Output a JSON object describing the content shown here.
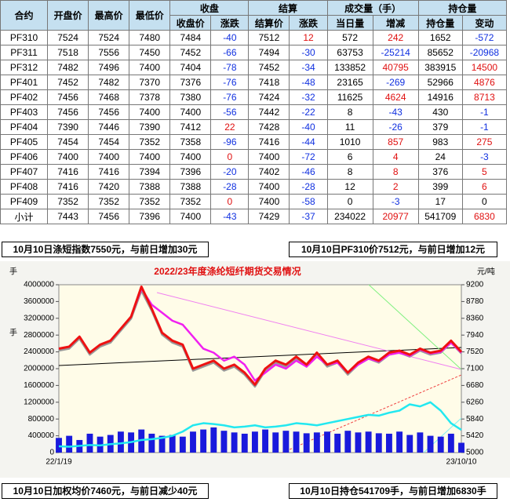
{
  "table": {
    "header": [
      "合约",
      "开盘价",
      "最高价",
      "最低价"
    ],
    "groups": [
      "收盘",
      "结算",
      "成交量（手）",
      "持仓量"
    ],
    "subheaders": [
      "收盘价",
      "涨跌",
      "结算价",
      "涨跌",
      "当日量",
      "增减",
      "持仓量",
      "变动"
    ],
    "rows": [
      [
        "PF310",
        7524,
        7524,
        7480,
        7484,
        -40,
        7512,
        12,
        572,
        242,
        1652,
        -572
      ],
      [
        "PF311",
        7518,
        7556,
        7450,
        7452,
        -66,
        7494,
        -30,
        63753,
        -25214,
        85652,
        -20968
      ],
      [
        "PF312",
        7482,
        7496,
        7400,
        7404,
        -78,
        7452,
        -34,
        133852,
        40795,
        383915,
        14500
      ],
      [
        "PF401",
        7452,
        7482,
        7370,
        7376,
        -76,
        7418,
        -48,
        23165,
        -269,
        52966,
        4876
      ],
      [
        "PF402",
        7456,
        7468,
        7378,
        7380,
        -76,
        7424,
        -32,
        11625,
        4624,
        14916,
        8713
      ],
      [
        "PF403",
        7456,
        7456,
        7400,
        7400,
        -56,
        7442,
        -22,
        8,
        -43,
        430,
        -1
      ],
      [
        "PF404",
        7390,
        7446,
        7390,
        7412,
        22,
        7428,
        -40,
        11,
        -26,
        379,
        -1
      ],
      [
        "PF405",
        7454,
        7454,
        7352,
        7358,
        -96,
        7416,
        -44,
        1010,
        857,
        983,
        275
      ],
      [
        "PF406",
        7400,
        7400,
        7400,
        7400,
        0,
        7400,
        -72,
        6,
        4,
        24,
        -3
      ],
      [
        "PF407",
        7416,
        7416,
        7394,
        7396,
        -20,
        7402,
        -46,
        8,
        8,
        376,
        5
      ],
      [
        "PF408",
        7416,
        7420,
        7388,
        7388,
        -28,
        7400,
        -28,
        12,
        2,
        399,
        6
      ],
      [
        "PF409",
        7352,
        7352,
        7352,
        7352,
        0,
        7400,
        -58,
        0,
        -3,
        17,
        0
      ],
      [
        "小计",
        7443,
        7456,
        7396,
        7400,
        -43,
        7429,
        -37,
        234022,
        20977,
        541709,
        6830
      ]
    ]
  },
  "banners": [
    "10月10日涤短指数7550元，与前日增加30元",
    "10月10日PF310价7512元，与前日增加12元",
    "10月10日加权均价7460元，与前日减少40元",
    "10月10日持仓541709手，与前日增加6830手"
  ],
  "chart_data": {
    "type": "line",
    "title": "2022/23年度涤纶短纤期货交易情况",
    "y_label": "手",
    "y2_label": "元/吨",
    "categories": [
      "22/1/19",
      null,
      null,
      null,
      null,
      null,
      null,
      null,
      null,
      null,
      null,
      null,
      null,
      null,
      null,
      null,
      null,
      null,
      null,
      null,
      null,
      null,
      null,
      null,
      null,
      null,
      null,
      null,
      null,
      null,
      null,
      null,
      null,
      null,
      null,
      null,
      null,
      null,
      null,
      "23/10/10"
    ],
    "ylim": [
      0,
      4000000
    ],
    "yticks": [
      0,
      400000,
      800000,
      1200000,
      1600000,
      2000000,
      2400000,
      2800000,
      3200000,
      3600000,
      4000000
    ],
    "y2lim": [
      5000,
      9200
    ],
    "y2ticks": [
      5000,
      5420,
      5840,
      6260,
      6680,
      7100,
      7520,
      7940,
      8360,
      8780,
      9200
    ],
    "series": [
      {
        "type": "bar",
        "axis": "y",
        "color": "#1a1adc",
        "values": [
          350000,
          400000,
          300000,
          450000,
          380000,
          420000,
          500000,
          480000,
          550000,
          450000,
          400000,
          420000,
          380000,
          500000,
          550000,
          600000,
          520000,
          480000,
          450000,
          500000,
          550000,
          480000,
          520000,
          500000,
          460000,
          480000,
          500000,
          450000,
          520000,
          480000,
          500000,
          460000,
          450000,
          500000,
          420000,
          480000,
          400000,
          380000,
          450000,
          234022
        ]
      },
      {
        "type": "line",
        "axis": "y",
        "color": "#22e8f0",
        "values": [
          150000,
          140000,
          160000,
          180000,
          170000,
          200000,
          220000,
          250000,
          300000,
          320000,
          350000,
          400000,
          500000,
          650000,
          700000,
          680000,
          650000,
          600000,
          620000,
          650000,
          600000,
          620000,
          650000,
          700000,
          680000,
          650000,
          700000,
          750000,
          800000,
          850000,
          900000,
          880000,
          950000,
          1000000,
          1150000,
          1100000,
          1200000,
          1000000,
          700000,
          541709
        ]
      },
      {
        "type": "line",
        "axis": "y2",
        "color": "#999999",
        "values": [
          7550,
          7600,
          7850,
          7450,
          7650,
          7750,
          8050,
          8350,
          9050,
          8550,
          7950,
          7750,
          7650,
          7050,
          7150,
          7250,
          7050,
          7150,
          6950,
          6650,
          7050,
          7250,
          7150,
          7350,
          7150,
          7450,
          7150,
          7250,
          6950,
          7200,
          7350,
          7250,
          7450,
          7500,
          7400,
          7550,
          7450,
          7500,
          7750,
          7480
        ]
      },
      {
        "type": "line",
        "axis": "y2",
        "color": "#f020f0",
        "values": [
          7600,
          7650,
          7900,
          7500,
          7700,
          7800,
          8100,
          8400,
          9100,
          8700,
          8500,
          8300,
          8200,
          7900,
          7600,
          7500,
          7300,
          7400,
          7200,
          6800,
          7000,
          7200,
          7100,
          7300,
          7150,
          7400,
          7200,
          7250,
          7000,
          7200,
          7350,
          7280,
          7450,
          7500,
          7420,
          7580,
          7480,
          7520,
          7750,
          7500
        ]
      },
      {
        "type": "line",
        "axis": "y2",
        "color": "#ee1111",
        "values": [
          7600,
          7650,
          7900,
          7500,
          7700,
          7800,
          8100,
          8400,
          9150,
          8600,
          8000,
          7800,
          7700,
          7100,
          7200,
          7300,
          7100,
          7200,
          7000,
          6700,
          7100,
          7300,
          7200,
          7400,
          7200,
          7500,
          7200,
          7300,
          7000,
          7250,
          7400,
          7300,
          7500,
          7550,
          7450,
          7600,
          7500,
          7550,
          7800,
          7520
        ]
      }
    ]
  }
}
